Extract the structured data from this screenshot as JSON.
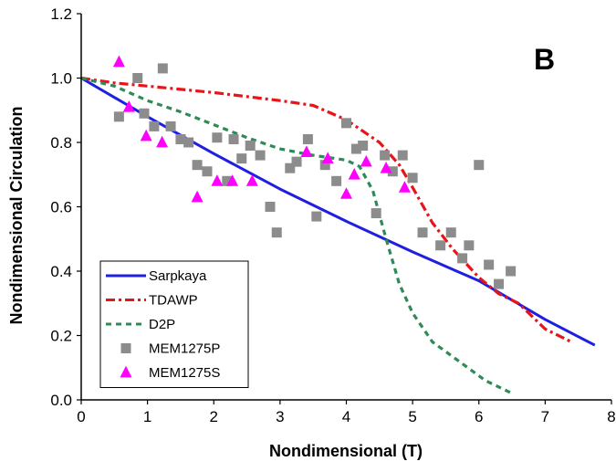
{
  "chart_data": {
    "type": "scatter",
    "panel_label": "B",
    "title": "",
    "xlabel": "Nondimensional (T)",
    "ylabel": "Nondimensional Circulation",
    "xlim": [
      0,
      8
    ],
    "ylim": [
      0.0,
      1.2
    ],
    "xticks": [
      "0",
      "1",
      "2",
      "3",
      "4",
      "5",
      "6",
      "7",
      "8"
    ],
    "yticks": [
      "0.0",
      "0.2",
      "0.4",
      "0.6",
      "0.8",
      "1.0",
      "1.2"
    ],
    "grid": false,
    "legend_position": "bottom-left",
    "series": [
      {
        "name": "Sarpkaya",
        "kind": "line",
        "style": "solid",
        "color": "#1f1fe0",
        "points": [
          [
            0,
            1.0
          ],
          [
            1,
            0.88
          ],
          [
            2,
            0.765
          ],
          [
            3,
            0.655
          ],
          [
            4,
            0.555
          ],
          [
            5,
            0.46
          ],
          [
            6,
            0.37
          ],
          [
            7,
            0.25
          ],
          [
            7.75,
            0.17
          ]
        ]
      },
      {
        "name": "TDAWP",
        "kind": "line",
        "style": "dash-dot",
        "color": "#e8141a",
        "points": [
          [
            0,
            1.0
          ],
          [
            0.5,
            0.985
          ],
          [
            1,
            0.975
          ],
          [
            2,
            0.955
          ],
          [
            3,
            0.93
          ],
          [
            3.5,
            0.915
          ],
          [
            4,
            0.87
          ],
          [
            4.5,
            0.8
          ],
          [
            4.8,
            0.73
          ],
          [
            5,
            0.66
          ],
          [
            5.3,
            0.55
          ],
          [
            5.6,
            0.47
          ],
          [
            6,
            0.38
          ],
          [
            6.3,
            0.33
          ],
          [
            6.6,
            0.3
          ],
          [
            7,
            0.22
          ],
          [
            7.4,
            0.18
          ]
        ]
      },
      {
        "name": "D2P",
        "kind": "line",
        "style": "dashed",
        "color": "#2e8b57",
        "points": [
          [
            0,
            1.0
          ],
          [
            0.5,
            0.975
          ],
          [
            1,
            0.93
          ],
          [
            1.5,
            0.895
          ],
          [
            2,
            0.855
          ],
          [
            2.5,
            0.815
          ],
          [
            3,
            0.78
          ],
          [
            3.5,
            0.76
          ],
          [
            4,
            0.745
          ],
          [
            4.2,
            0.725
          ],
          [
            4.4,
            0.65
          ],
          [
            4.6,
            0.5
          ],
          [
            4.8,
            0.36
          ],
          [
            5,
            0.27
          ],
          [
            5.3,
            0.18
          ],
          [
            5.7,
            0.12
          ],
          [
            6.1,
            0.06
          ],
          [
            6.5,
            0.02
          ]
        ]
      },
      {
        "name": "MEM1275P",
        "kind": "scatter",
        "marker": "square",
        "color": "#8c8c8c",
        "points": [
          [
            0.57,
            0.88
          ],
          [
            0.85,
            1.0
          ],
          [
            0.95,
            0.89
          ],
          [
            1.1,
            0.85
          ],
          [
            1.23,
            1.03
          ],
          [
            1.35,
            0.85
          ],
          [
            1.5,
            0.81
          ],
          [
            1.62,
            0.8
          ],
          [
            1.75,
            0.73
          ],
          [
            1.9,
            0.71
          ],
          [
            2.05,
            0.815
          ],
          [
            2.2,
            0.68
          ],
          [
            2.3,
            0.81
          ],
          [
            2.42,
            0.75
          ],
          [
            2.55,
            0.79
          ],
          [
            2.7,
            0.76
          ],
          [
            2.85,
            0.6
          ],
          [
            2.95,
            0.52
          ],
          [
            3.15,
            0.72
          ],
          [
            3.25,
            0.74
          ],
          [
            3.42,
            0.81
          ],
          [
            3.55,
            0.57
          ],
          [
            3.68,
            0.73
          ],
          [
            3.85,
            0.68
          ],
          [
            4.0,
            0.86
          ],
          [
            4.15,
            0.78
          ],
          [
            4.25,
            0.79
          ],
          [
            4.45,
            0.58
          ],
          [
            4.58,
            0.76
          ],
          [
            4.7,
            0.71
          ],
          [
            4.85,
            0.76
          ],
          [
            5.0,
            0.69
          ],
          [
            5.15,
            0.52
          ],
          [
            5.42,
            0.48
          ],
          [
            5.58,
            0.52
          ],
          [
            5.75,
            0.44
          ],
          [
            5.85,
            0.48
          ],
          [
            6.0,
            0.73
          ],
          [
            6.15,
            0.42
          ],
          [
            6.3,
            0.36
          ],
          [
            6.48,
            0.4
          ]
        ]
      },
      {
        "name": "MEM1275S",
        "kind": "scatter",
        "marker": "triangle",
        "color": "#ff00ff",
        "points": [
          [
            0.57,
            1.05
          ],
          [
            0.72,
            0.91
          ],
          [
            0.98,
            0.82
          ],
          [
            1.22,
            0.8
          ],
          [
            1.75,
            0.63
          ],
          [
            2.05,
            0.68
          ],
          [
            2.28,
            0.68
          ],
          [
            2.58,
            0.68
          ],
          [
            3.4,
            0.77
          ],
          [
            3.72,
            0.75
          ],
          [
            4.0,
            0.64
          ],
          [
            4.12,
            0.7
          ],
          [
            4.3,
            0.74
          ],
          [
            4.6,
            0.72
          ],
          [
            4.88,
            0.66
          ]
        ]
      }
    ]
  }
}
